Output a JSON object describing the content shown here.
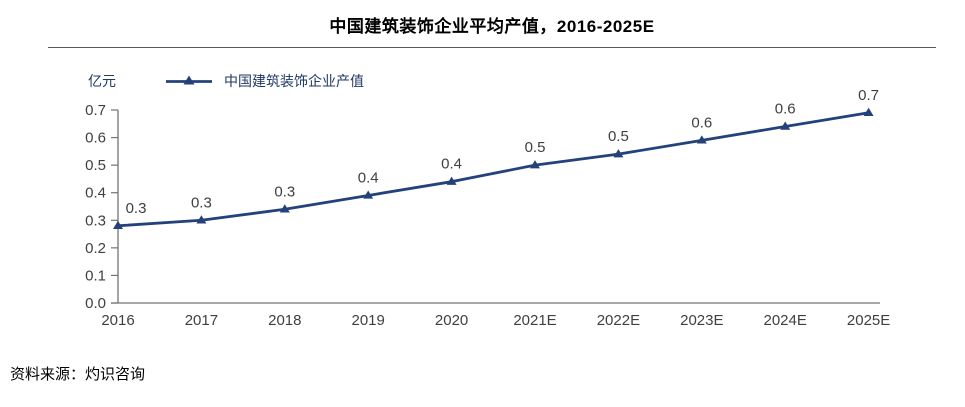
{
  "title": "中国建筑装饰企业平均产值，2016-2025E",
  "unit_label": "亿元",
  "legend_label": "中国建筑装饰企业产值",
  "source": "资料来源：灼识咨询",
  "colors": {
    "line": "#24427A",
    "axis": "#737373",
    "tick_label": "#404040",
    "data_label": "#404040",
    "legend_text": "#1F3864",
    "title_text": "#000000"
  },
  "chart_data": {
    "type": "line",
    "title": "中国建筑装饰企业平均产值，2016-2025E",
    "ylabel": "亿元",
    "xlabel": "",
    "legend_entries": [
      "中国建筑装饰企业产值"
    ],
    "legend_position": "top-left",
    "grid": false,
    "marker": "triangle-up",
    "categories": [
      "2016",
      "2017",
      "2018",
      "2019",
      "2020",
      "2021E",
      "2022E",
      "2023E",
      "2024E",
      "2025E"
    ],
    "series": [
      {
        "name": "中国建筑装饰企业产值",
        "values": [
          0.28,
          0.3,
          0.34,
          0.39,
          0.44,
          0.5,
          0.54,
          0.59,
          0.64,
          0.69
        ],
        "point_labels": [
          "0.3",
          "0.3",
          "0.3",
          "0.4",
          "0.4",
          "0.5",
          "0.5",
          "0.6",
          "0.6",
          "0.7"
        ]
      }
    ],
    "ylim": [
      0.0,
      0.7
    ],
    "y_ticks": [
      0.0,
      0.1,
      0.2,
      0.3,
      0.4,
      0.5,
      0.6,
      0.7
    ]
  }
}
